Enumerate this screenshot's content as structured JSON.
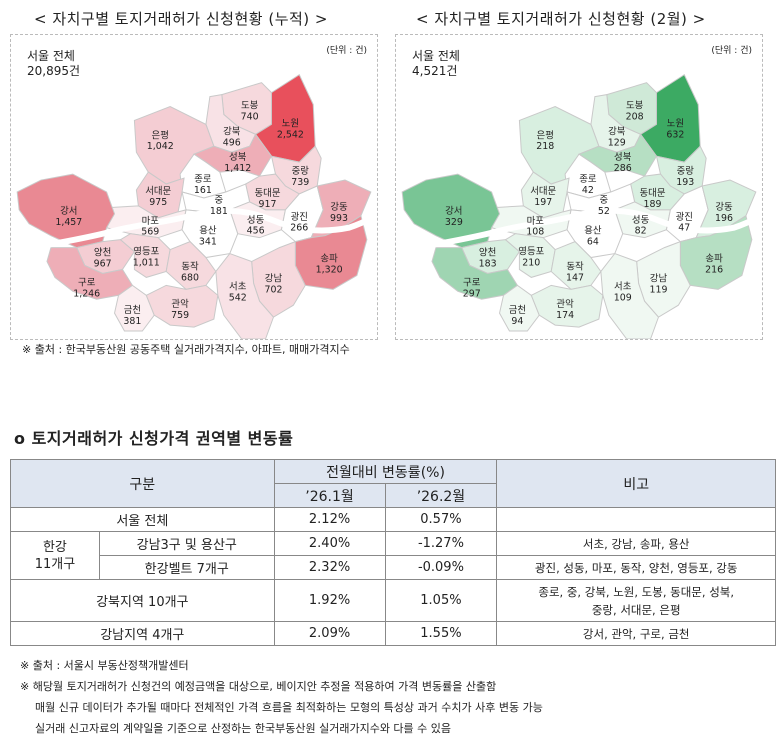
{
  "left_map": {
    "title": "< 자치구별 토지거래허가 신청현황 (누적) >",
    "total_label": "서울 전체",
    "total_value": "20,895건",
    "unit": "(단위 : 건)",
    "districts": [
      {
        "id": "dobong",
        "name": "도봉",
        "value": "740",
        "color": "#f6d9dd"
      },
      {
        "id": "nowon",
        "name": "노원",
        "value": "2,542",
        "color": "#e8505c"
      },
      {
        "id": "gangbuk",
        "name": "강북",
        "value": "496",
        "color": "#f8e2e6"
      },
      {
        "id": "eunpyeong",
        "name": "은평",
        "value": "1,042",
        "color": "#f4cdd3"
      },
      {
        "id": "seongbuk",
        "name": "성북",
        "value": "1,412",
        "color": "#eeaeb7"
      },
      {
        "id": "jungnang",
        "name": "중랑",
        "value": "739",
        "color": "#f6d9dd"
      },
      {
        "id": "jongno",
        "name": "종로",
        "value": "161",
        "color": "#ffffff"
      },
      {
        "id": "seodaemun",
        "name": "서대문",
        "value": "975",
        "color": "#f4cdd3"
      },
      {
        "id": "dongdaemun",
        "name": "동대문",
        "value": "917",
        "color": "#f6d9dd"
      },
      {
        "id": "jung",
        "name": "중",
        "value": "181",
        "color": "#ffffff"
      },
      {
        "id": "mapo",
        "name": "마포",
        "value": "569",
        "color": "#fbeef0"
      },
      {
        "id": "gangseo",
        "name": "강서",
        "value": "1,457",
        "color": "#e98993"
      },
      {
        "id": "seongdong",
        "name": "성동",
        "value": "456",
        "color": "#fbeef0"
      },
      {
        "id": "gwangjin",
        "name": "광진",
        "value": "266",
        "color": "#ffffff"
      },
      {
        "id": "gangdong",
        "name": "강동",
        "value": "993",
        "color": "#eeaeb7"
      },
      {
        "id": "yongsan",
        "name": "용산",
        "value": "341",
        "color": "#ffffff"
      },
      {
        "id": "yangcheon",
        "name": "양천",
        "value": "967",
        "color": "#f4cdd3"
      },
      {
        "id": "yeongdeungpo",
        "name": "영등포",
        "value": "1,011",
        "color": "#f6d9dd"
      },
      {
        "id": "guro",
        "name": "구로",
        "value": "1,246",
        "color": "#eeaeb7"
      },
      {
        "id": "dongjak",
        "name": "동작",
        "value": "680",
        "color": "#f6d9dd"
      },
      {
        "id": "songpa",
        "name": "송파",
        "value": "1,320",
        "color": "#e98993"
      },
      {
        "id": "gangnam",
        "name": "강남",
        "value": "702",
        "color": "#f6d9dd"
      },
      {
        "id": "seocho",
        "name": "서초",
        "value": "542",
        "color": "#f8e2e6"
      },
      {
        "id": "geumcheon",
        "name": "금천",
        "value": "381",
        "color": "#fbeef0"
      },
      {
        "id": "gwanak",
        "name": "관악",
        "value": "759",
        "color": "#f6d9dd"
      }
    ]
  },
  "right_map": {
    "title": "< 자치구별 토지거래허가 신청현황 (2월) >",
    "total_label": "서울 전체",
    "total_value": "4,521건",
    "unit": "(단위 : 건)",
    "districts": [
      {
        "id": "dobong",
        "name": "도봉",
        "value": "208",
        "color": "#cfe9d7"
      },
      {
        "id": "nowon",
        "name": "노원",
        "value": "632",
        "color": "#3caa63"
      },
      {
        "id": "gangbuk",
        "name": "강북",
        "value": "129",
        "color": "#e6f4ea"
      },
      {
        "id": "eunpyeong",
        "name": "은평",
        "value": "218",
        "color": "#d8efe0"
      },
      {
        "id": "seongbuk",
        "name": "성북",
        "value": "286",
        "color": "#b6dfc3"
      },
      {
        "id": "jungnang",
        "name": "중랑",
        "value": "193",
        "color": "#d8efe0"
      },
      {
        "id": "jongno",
        "name": "종로",
        "value": "42",
        "color": "#ffffff"
      },
      {
        "id": "seodaemun",
        "name": "서대문",
        "value": "197",
        "color": "#e6f4ea"
      },
      {
        "id": "dongdaemun",
        "name": "동대문",
        "value": "189",
        "color": "#d8efe0"
      },
      {
        "id": "jung",
        "name": "중",
        "value": "52",
        "color": "#ffffff"
      },
      {
        "id": "mapo",
        "name": "마포",
        "value": "108",
        "color": "#f0f8f2"
      },
      {
        "id": "gangseo",
        "name": "강서",
        "value": "329",
        "color": "#79c595"
      },
      {
        "id": "seongdong",
        "name": "성동",
        "value": "82",
        "color": "#f0f8f2"
      },
      {
        "id": "gwangjin",
        "name": "광진",
        "value": "47",
        "color": "#ffffff"
      },
      {
        "id": "gangdong",
        "name": "강동",
        "value": "196",
        "color": "#d8efe0"
      },
      {
        "id": "yongsan",
        "name": "용산",
        "value": "64",
        "color": "#ffffff"
      },
      {
        "id": "yangcheon",
        "name": "양천",
        "value": "183",
        "color": "#d8efe0"
      },
      {
        "id": "yeongdeungpo",
        "name": "영등포",
        "value": "210",
        "color": "#e6f4ea"
      },
      {
        "id": "guro",
        "name": "구로",
        "value": "297",
        "color": "#9fd5b2"
      },
      {
        "id": "dongjak",
        "name": "동작",
        "value": "147",
        "color": "#e6f4ea"
      },
      {
        "id": "songpa",
        "name": "송파",
        "value": "216",
        "color": "#b6dfc3"
      },
      {
        "id": "gangnam",
        "name": "강남",
        "value": "119",
        "color": "#f0f8f2"
      },
      {
        "id": "seocho",
        "name": "서초",
        "value": "109",
        "color": "#f0f8f2"
      },
      {
        "id": "geumcheon",
        "name": "금천",
        "value": "94",
        "color": "#f0f8f2"
      },
      {
        "id": "gwanak",
        "name": "관악",
        "value": "174",
        "color": "#e6f4ea"
      }
    ]
  },
  "map_source": "※ 출처 : 한국부동산원 공동주택 실거래가격지수, 아파트, 매매가격지수",
  "section_title": "o  토지거래허가 신청가격 권역별 변동률",
  "table": {
    "h_category": "구분",
    "h_change": "전월대비 변동률(%)",
    "h_jan": "’26.1월",
    "h_feb": "’26.2월",
    "h_note": "비고",
    "seoul_label": "서울 전체",
    "seoul_jan": "2.12%",
    "seoul_feb": "0.57%",
    "seoul_note": "",
    "hangang_label": "한강\n11개구",
    "g3_label": "강남3구 및 용산구",
    "g3_jan": "2.40%",
    "g3_feb": "-1.27%",
    "g3_note": "서초, 강남, 송파, 용산",
    "belt_label": "한강벨트 7개구",
    "belt_jan": "2.32%",
    "belt_feb": "-0.09%",
    "belt_note": "광진, 성동, 마포, 동작, 양천, 영등포, 강동",
    "north_label": "강북지역 10개구",
    "north_jan": "1.92%",
    "north_feb": "1.05%",
    "north_note1": "종로, 중, 강북, 노원, 도봉, 동대문, 성북,",
    "north_note2": "중랑, 서대문, 은평",
    "south_label": "강남지역 4개구",
    "south_jan": "2.09%",
    "south_feb": "1.55%",
    "south_note": "강서, 관악, 구로, 금천"
  },
  "footnotes": {
    "source": "※ 출처 : 서울시 부동산정책개발센터",
    "line1": "※ 해당월 토지거래허가 신청건의 예정금액을 대상으로, 베이지안 추정을 적용하여 가격 변동률을 산출함",
    "line2": "매월 신규 데이터가 추가될 때마다 전체적인 가격 흐름을 최적화하는 모형의 특성상 과거 수치가 사후 변동 가능",
    "line3": "실거래 신고자료의 계약일을 기준으로 산정하는 한국부동산원 실거래가지수와 다를 수 있음"
  }
}
